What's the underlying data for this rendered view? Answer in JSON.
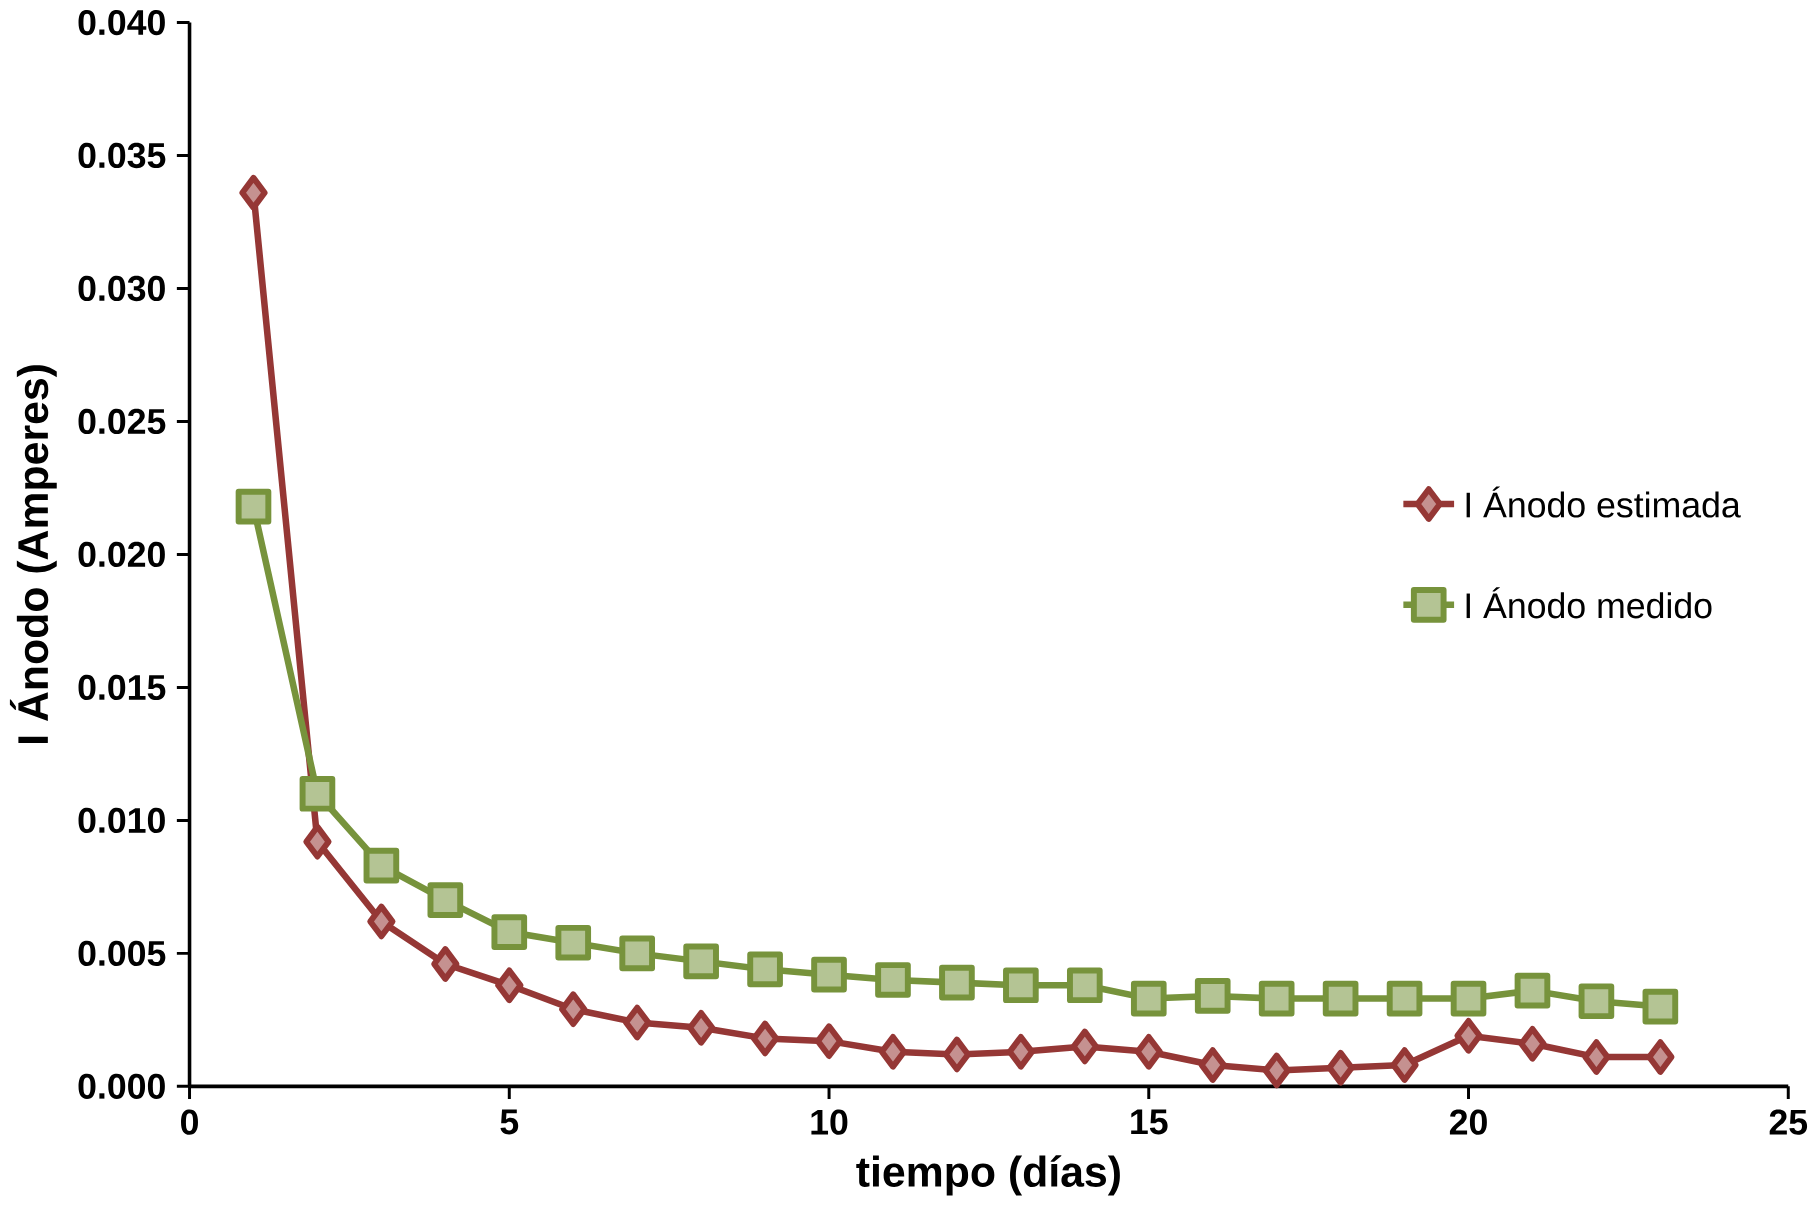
{
  "chart_data": {
    "type": "line",
    "xlabel": "tiempo (días)",
    "ylabel": "I Ánodo (Amperes)",
    "xlim": [
      0,
      25
    ],
    "xticks": [
      0,
      5,
      10,
      15,
      20,
      25
    ],
    "ylim": [
      0,
      0.04
    ],
    "yticks": [
      {
        "value": 0,
        "label": "0.000"
      },
      {
        "value": 0.005,
        "label": "0.005"
      },
      {
        "value": 0.01,
        "label": "0.010"
      },
      {
        "value": 0.015,
        "label": "0.015"
      },
      {
        "value": 0.02,
        "label": "0.020"
      },
      {
        "value": 0.025,
        "label": "0.025"
      },
      {
        "value": 0.03,
        "label": "0.030"
      },
      {
        "value": 0.035,
        "label": "0.035"
      },
      {
        "value": 0.04,
        "label": "0.040"
      }
    ],
    "grid": false,
    "legend": "right",
    "x": [
      1,
      2,
      3,
      4,
      5,
      6,
      7,
      8,
      9,
      10,
      11,
      12,
      13,
      14,
      15,
      16,
      17,
      18,
      19,
      20,
      21,
      22,
      23
    ],
    "series": [
      {
        "name": "I Ánodo estimada",
        "color": "#953735",
        "marker": "diamond",
        "values": [
          0.0336,
          0.0092,
          0.0062,
          0.0046,
          0.0038,
          0.0029,
          0.0024,
          0.0022,
          0.0018,
          0.0017,
          0.0013,
          0.0012,
          0.0013,
          0.0015,
          0.0013,
          0.0008,
          0.0006,
          0.0007,
          0.0008,
          0.0019,
          0.0016,
          0.0011,
          0.0011
        ]
      },
      {
        "name": "I Ánodo medido",
        "color": "#77933c",
        "marker": "square",
        "values": [
          0.0218,
          0.011,
          0.0083,
          0.007,
          0.0058,
          0.0054,
          0.005,
          0.0047,
          0.0044,
          0.0042,
          0.004,
          0.0039,
          0.0038,
          0.0038,
          0.0033,
          0.0034,
          0.0033,
          0.0033,
          0.0033,
          0.0033,
          0.0036,
          0.0032,
          0.003
        ]
      }
    ]
  }
}
